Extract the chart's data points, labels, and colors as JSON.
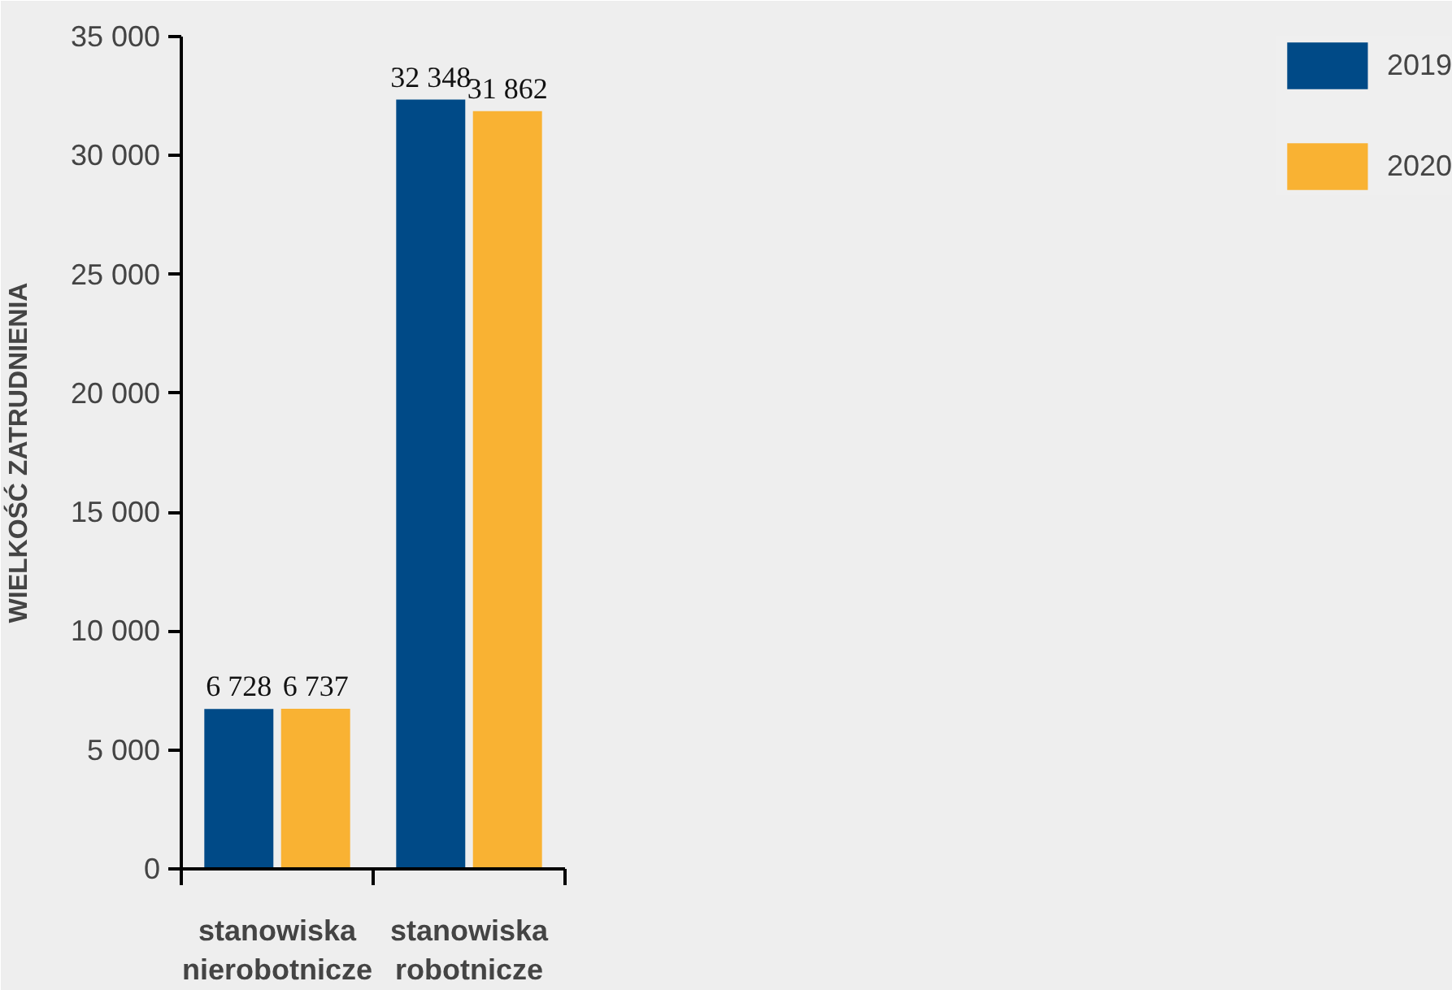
{
  "chart_data": {
    "type": "bar",
    "ylabel": "WIELKOŚĆ ZATRUDNIENIA",
    "categories": [
      "stanowiska nierobotnicze",
      "stanowiska robotnicze"
    ],
    "series": [
      {
        "name": "2019",
        "color": "#004a87",
        "values": [
          6728,
          32348
        ],
        "value_labels": [
          "6 728",
          "32 348"
        ]
      },
      {
        "name": "2020",
        "color": "#f9b233",
        "values": [
          6737,
          31862
        ],
        "value_labels": [
          "6 737",
          "31 862"
        ]
      }
    ],
    "ylim": [
      0,
      35000
    ],
    "yticks": [
      {
        "value": 0,
        "label": "0"
      },
      {
        "value": 5000,
        "label": "5 000"
      },
      {
        "value": 10000,
        "label": "10 000"
      },
      {
        "value": 15000,
        "label": "15 000"
      },
      {
        "value": 20000,
        "label": "20 000"
      },
      {
        "value": 25000,
        "label": "25 000"
      },
      {
        "value": 30000,
        "label": "30 000"
      },
      {
        "value": 35000,
        "label": "35 000"
      }
    ],
    "grid": false,
    "legend": "right"
  }
}
